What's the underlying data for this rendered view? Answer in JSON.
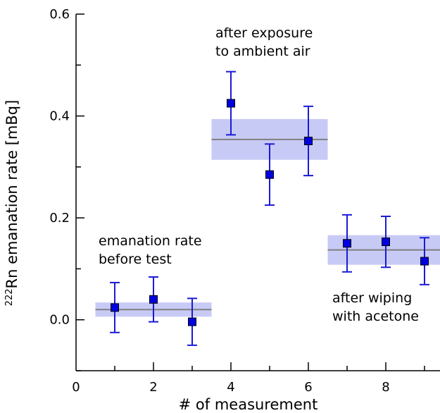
{
  "chart_data": {
    "type": "scatter",
    "title": "",
    "xlabel": "# of measurement",
    "ylabel": {
      "superscript": "222",
      "text": "Rn emanation rate [mBq]"
    },
    "xlim": [
      0,
      9.4
    ],
    "ylim": [
      -0.1,
      0.6
    ],
    "xticks": [
      0,
      2,
      4,
      6,
      8
    ],
    "xtick_labels": [
      "0",
      "2",
      "4",
      "6",
      "8"
    ],
    "yticks": [
      0.0,
      0.2,
      0.4,
      0.6
    ],
    "ytick_labels": [
      "0.0",
      "0.2",
      "0.4",
      "0.6"
    ],
    "x_minor_ticks": [
      1,
      3,
      5,
      7,
      9
    ],
    "y_minor_ticks": [
      -0.1,
      0.1,
      0.3,
      0.5
    ],
    "grid": false,
    "colors": {
      "marker": "#0000e0",
      "marker_edge": "#000000",
      "error_bar": "#1a1ad6",
      "band_fill": "#c8caf6",
      "mean_line": "#808080",
      "axis": "#000000"
    },
    "points": [
      {
        "x": 1,
        "y": 0.024,
        "err_low": 0.049,
        "err_high": 0.049
      },
      {
        "x": 2,
        "y": 0.04,
        "err_low": 0.044,
        "err_high": 0.044
      },
      {
        "x": 3,
        "y": -0.004,
        "err_low": 0.046,
        "err_high": 0.046
      },
      {
        "x": 4,
        "y": 0.425,
        "err_low": 0.062,
        "err_high": 0.062
      },
      {
        "x": 5,
        "y": 0.285,
        "err_low": 0.06,
        "err_high": 0.06
      },
      {
        "x": 6,
        "y": 0.351,
        "err_low": 0.068,
        "err_high": 0.068
      },
      {
        "x": 7,
        "y": 0.15,
        "err_low": 0.056,
        "err_high": 0.056
      },
      {
        "x": 8,
        "y": 0.153,
        "err_low": 0.05,
        "err_high": 0.05
      },
      {
        "x": 9,
        "y": 0.115,
        "err_low": 0.046,
        "err_high": 0.046
      }
    ],
    "groups": [
      {
        "x_range": [
          0.5,
          3.5
        ],
        "mean": 0.02,
        "band": [
          0.006,
          0.034
        ],
        "annotation": [
          "emanation rate",
          "before test"
        ]
      },
      {
        "x_range": [
          3.5,
          6.5
        ],
        "mean": 0.354,
        "band": [
          0.314,
          0.394
        ],
        "annotation": [
          "after exposure",
          "to ambient air"
        ]
      },
      {
        "x_range": [
          6.5,
          9.4
        ],
        "mean": 0.137,
        "band": [
          0.108,
          0.166
        ],
        "annotation": [
          "after wiping",
          "with acetone"
        ]
      }
    ]
  }
}
